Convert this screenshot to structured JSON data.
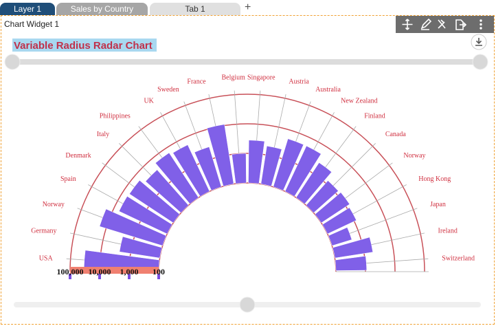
{
  "tabs": [
    "Layer 1",
    "Sales by Country",
    "Tab 1"
  ],
  "widget": {
    "title": "Chart Widget 1"
  },
  "chart_data": {
    "type": "radar",
    "title": "Variable Radius Radar Chart",
    "categories": [
      "USA",
      "Germany",
      "Norway",
      "Spain",
      "Denmark",
      "Italy",
      "Philippines",
      "UK",
      "Sweden",
      "France",
      "Belgium",
      "Singapore",
      "Austria",
      "Australia",
      "New Zealand",
      "Finland",
      "Canada",
      "Norway",
      "Hong Kong",
      "Japan",
      "Ireland",
      "Switzerland"
    ],
    "values": [
      34000,
      2400,
      17000,
      6300,
      6000,
      4000,
      6500,
      5500,
      2600,
      11000,
      1000,
      2800,
      2000,
      5000,
      5000,
      2600,
      1300,
      1400,
      1200,
      500,
      2000,
      1100
    ],
    "color": "#8060e8",
    "log": true,
    "ylim": [
      100,
      100000
    ],
    "yticks": [
      {
        "value": 100000,
        "label": "100,000"
      },
      {
        "value": 10000,
        "label": "10,000"
      },
      {
        "value": 1000,
        "label": "1,000"
      },
      {
        "value": 100,
        "label": "100"
      }
    ],
    "grid": true
  }
}
